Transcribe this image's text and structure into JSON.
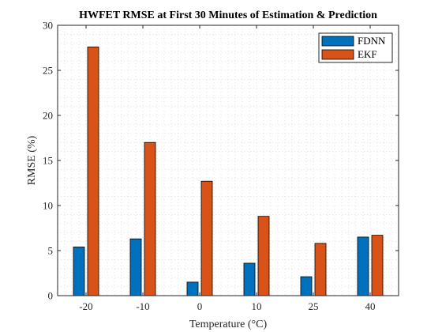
{
  "chart_data": {
    "type": "bar",
    "title": "HWFET RMSE at First 30 Minutes of Estimation & Prediction",
    "xlabel": "Temperature (°C)",
    "ylabel": "RMSE (%)",
    "categories": [
      "-20",
      "-10",
      "0",
      "10",
      "25",
      "40"
    ],
    "ylim": [
      0,
      30
    ],
    "yticks": [
      "0",
      "5",
      "10",
      "15",
      "20",
      "25",
      "30"
    ],
    "grid": "on (dotted)",
    "legend_position": "top-right",
    "series": [
      {
        "name": "FDNN",
        "color": "#0072BD",
        "values": [
          5.4,
          6.3,
          1.5,
          3.6,
          2.1,
          6.5
        ]
      },
      {
        "name": "EKF",
        "color": "#D95319",
        "values": [
          27.6,
          17.0,
          12.7,
          8.8,
          5.8,
          6.7
        ]
      }
    ]
  }
}
